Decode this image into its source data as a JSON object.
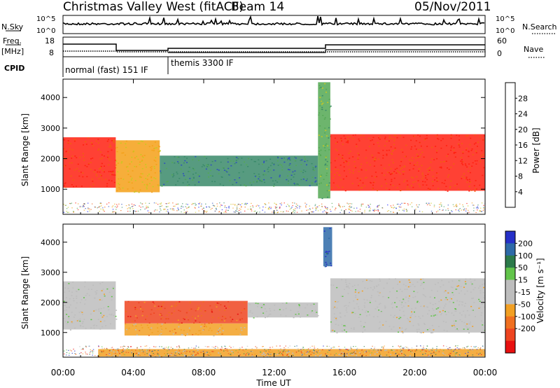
{
  "header": {
    "station": "Christmas Valley West (fitACF)",
    "beam": "Beam 14",
    "date": "05/Nov/2011"
  },
  "params_panel": {
    "nsky_label": "N.Sky",
    "nsky_ticks": [
      "10^5",
      "10^0"
    ],
    "nsearch_label": "N.Search",
    "nsearch_ticks": [
      "10^5",
      "10^0"
    ],
    "freq_label_1": "Freq.",
    "freq_label_2": "[MHz]",
    "freq_ticks": [
      "18",
      "8"
    ],
    "nave_label": "Nave",
    "nave_ticks": [
      "60",
      "0"
    ],
    "cpid_label": "CPID",
    "cpid_segments": [
      "normal (fast) 151 IF",
      "themis 3300 IF"
    ]
  },
  "colors": {
    "power_scale": [
      "#1a1aff",
      "#2f4fbf",
      "#3a8a6a",
      "#54a854",
      "#c8c820",
      "#f4a018",
      "#f06010",
      "#ff2010"
    ],
    "velocity_scale": [
      "#2630c8",
      "#2e6aa8",
      "#2c7a4a",
      "#62c44a",
      "#bdbdbd",
      "#bdbdbd",
      "#f2a023",
      "#f07020",
      "#ee4420",
      "#e81010"
    ]
  },
  "chart_data": [
    {
      "type": "heatmap",
      "title": "",
      "xlabel": "",
      "ylabel": "Slant Range [km]",
      "xlim": [
        "00:00",
        "24:00"
      ],
      "ylim": [
        180,
        4600
      ],
      "x_ticks": [
        "00:00",
        "04:00",
        "08:00",
        "12:00",
        "16:00",
        "20:00",
        "00:00"
      ],
      "y_ticks": [
        1000,
        2000,
        3000,
        4000
      ],
      "colorbar": {
        "label": "Power [dB]",
        "ticks": [
          4,
          8,
          12,
          16,
          20,
          24,
          28
        ],
        "range": [
          0,
          32
        ]
      },
      "regions": [
        {
          "x_start": 0.0,
          "x_end": 3.0,
          "range_start": 1050,
          "range_end": 2700,
          "value": 28
        },
        {
          "x_start": 3.0,
          "x_end": 5.5,
          "range_start": 900,
          "range_end": 2600,
          "value": 20
        },
        {
          "x_start": 5.5,
          "x_end": 14.5,
          "range_start": 1100,
          "range_end": 2100,
          "value": 10
        },
        {
          "x_start": 14.5,
          "x_end": 15.2,
          "range_start": 700,
          "range_end": 4500,
          "value": 14
        },
        {
          "x_start": 15.2,
          "x_end": 24.0,
          "range_start": 950,
          "range_end": 2800,
          "value": 28
        }
      ]
    },
    {
      "type": "heatmap",
      "title": "",
      "xlabel": "Time UT",
      "ylabel": "Slant Range [km]",
      "xlim": [
        "00:00",
        "24:00"
      ],
      "ylim": [
        180,
        4600
      ],
      "x_ticks": [
        "00:00",
        "04:00",
        "08:00",
        "12:00",
        "16:00",
        "20:00",
        "00:00"
      ],
      "y_ticks": [
        1000,
        2000,
        3000,
        4000
      ],
      "colorbar": {
        "label": "Velocity [m s⁻¹]",
        "ticks": [
          200,
          100,
          50,
          15,
          -15,
          -50,
          -100,
          -200
        ],
        "range": [
          -250,
          250
        ]
      },
      "regions": [
        {
          "x_start": 0.0,
          "x_end": 3.0,
          "range_start": 1100,
          "range_end": 2700,
          "value": 0
        },
        {
          "x_start": 3.5,
          "x_end": 10.5,
          "range_start": 1300,
          "range_end": 2050,
          "value": -150
        },
        {
          "x_start": 3.5,
          "x_end": 10.5,
          "range_start": 900,
          "range_end": 1300,
          "value": -60
        },
        {
          "x_start": 10.5,
          "x_end": 14.5,
          "range_start": 1500,
          "range_end": 2000,
          "value": 30
        },
        {
          "x_start": 14.8,
          "x_end": 15.3,
          "range_start": 3200,
          "range_end": 4500,
          "value": 200
        },
        {
          "x_start": 15.2,
          "x_end": 24.0,
          "range_start": 1000,
          "range_end": 2800,
          "value": 0
        },
        {
          "x_start": 2.0,
          "x_end": 24.0,
          "range_start": 200,
          "range_end": 450,
          "value": -50
        }
      ]
    }
  ]
}
